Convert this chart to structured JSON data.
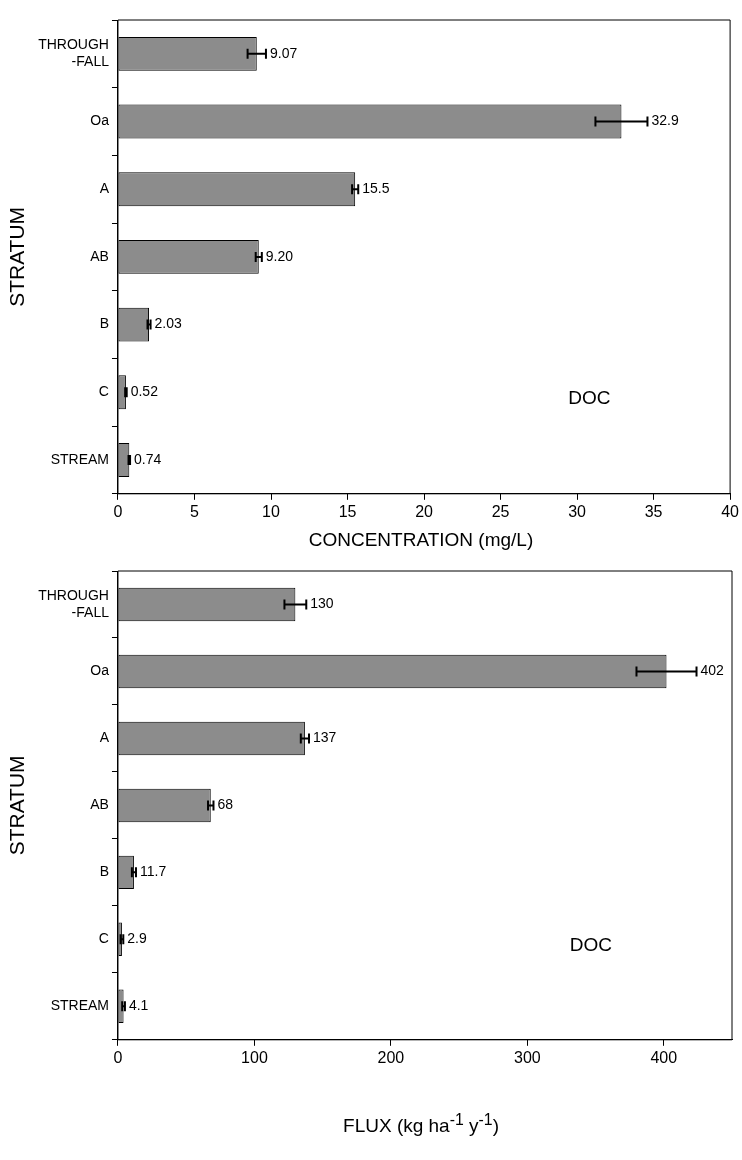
{
  "chart_data": [
    {
      "type": "bar",
      "orientation": "horizontal",
      "categories": [
        "THROUGH\n-FALL",
        "Oa",
        "A",
        "AB",
        "B",
        "C",
        "STREAM"
      ],
      "values": [
        9.07,
        32.9,
        15.5,
        9.2,
        2.03,
        0.52,
        0.74
      ],
      "errors": [
        0.6,
        1.7,
        0.2,
        0.2,
        0.1,
        0.05,
        0.05
      ],
      "value_labels": [
        "9.07",
        "32.9",
        "15.5",
        "9.20",
        "2.03",
        "0.52",
        "0.74"
      ],
      "color": "#8c8c8c",
      "xlabel": "CONCENTRATION (mg/L)",
      "ylabel": "STRATUM",
      "xlim": [
        0,
        40
      ],
      "xticks": [
        0,
        5,
        10,
        15,
        20,
        25,
        30,
        35,
        40
      ],
      "grid": false,
      "legend": false,
      "annotations": [
        "DOC"
      ]
    },
    {
      "type": "bar",
      "orientation": "horizontal",
      "categories": [
        "THROUGH\n-FALL",
        "Oa",
        "A",
        "AB",
        "B",
        "C",
        "STREAM"
      ],
      "values": [
        130,
        402,
        137,
        68,
        11.7,
        2.9,
        4.1
      ],
      "errors": [
        8,
        22,
        3,
        2,
        1.5,
        1,
        1
      ],
      "value_labels": [
        "130",
        "402",
        "137",
        "68",
        "11.7",
        "2.9",
        "4.1"
      ],
      "color": "#8c8c8c",
      "xlabel": "FLUX (kg ha$^{-1}$ y$^{-1}$)",
      "ylabel": "STRATUM",
      "xlim": [
        0,
        450
      ],
      "xticks": [
        0,
        100,
        200,
        300,
        400
      ],
      "grid": false,
      "legend": false,
      "annotations": [
        "DOC"
      ]
    }
  ]
}
